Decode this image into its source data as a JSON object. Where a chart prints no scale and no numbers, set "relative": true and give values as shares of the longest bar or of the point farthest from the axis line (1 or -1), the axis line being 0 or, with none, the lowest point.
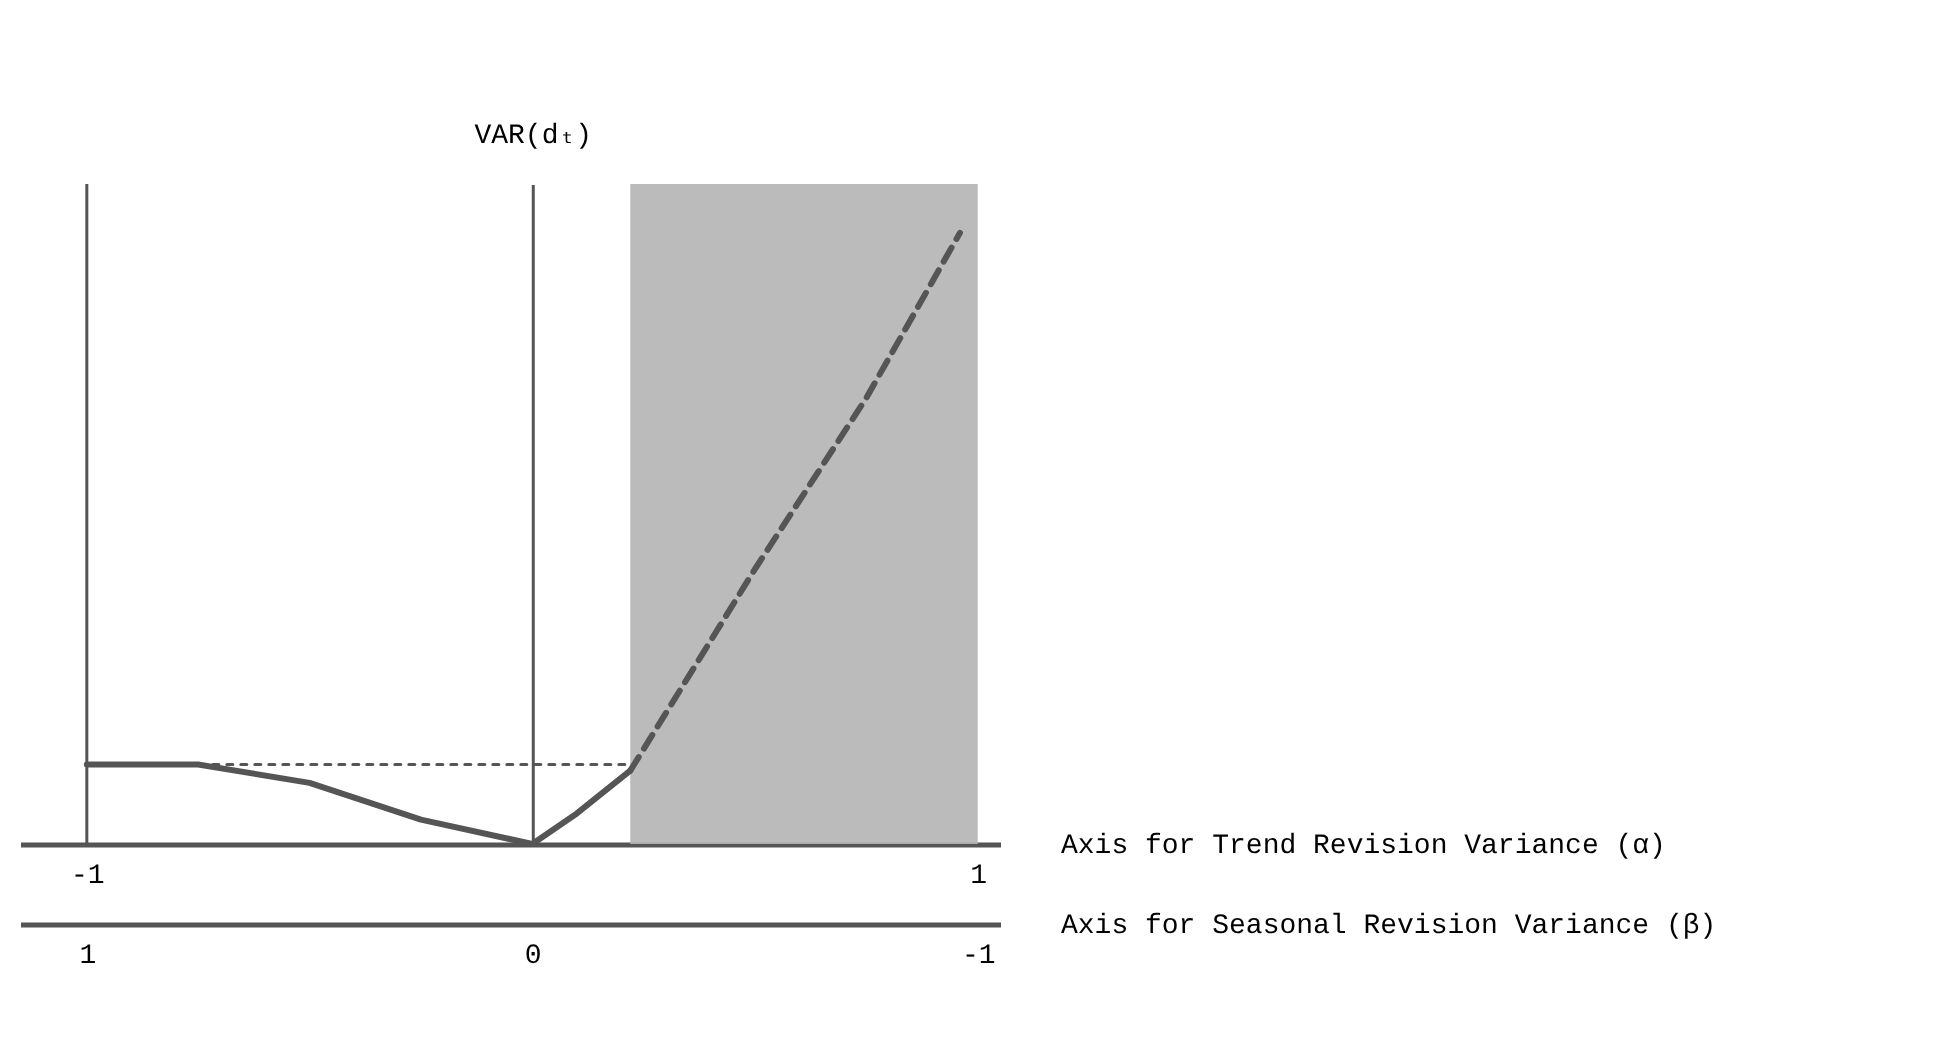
{
  "chart_data": {
    "type": "line",
    "relative": true,
    "ylabel": "VAR(dₜ)",
    "xlabel": "Axis for Trend Revision Variance (α)",
    "x2label": "Axis for Seasonal Revision Variance (β)",
    "xlim": [
      -1.15,
      1.05
    ],
    "xticks": [
      {
        "value": -1,
        "label": "-1"
      },
      {
        "value": 1,
        "label": "1"
      }
    ],
    "x2lim": [
      1.15,
      -1.05
    ],
    "x2ticks": [
      {
        "value": 1,
        "label": "1"
      },
      {
        "value": 0,
        "label": "0"
      },
      {
        "value": -1,
        "label": "-1"
      }
    ],
    "ref_lines": [
      {
        "axis": "x",
        "value": -1,
        "color": "#555555"
      }
    ],
    "bands": [
      {
        "axis": "x",
        "from": 0.22,
        "to": 1.0,
        "color": "#b4b4b4"
      }
    ],
    "series": [
      {
        "color": "#555555",
        "line_style": "solid",
        "x": [
          -1,
          -0.75,
          -0.5,
          -0.25,
          0,
          0.1,
          0.22
        ],
        "values": [
          0.13,
          0.13,
          0.1,
          0.04,
          0,
          0.05,
          0.12
        ]
      },
      {
        "color": "#555555",
        "line_style": "dashed",
        "x": [
          0.22,
          0.5,
          0.75,
          0.96
        ],
        "values": [
          0.12,
          0.45,
          0.73,
          1
        ]
      },
      {
        "color": "#555555",
        "line_style": "dotted",
        "x": [
          -1,
          0.22
        ],
        "values": [
          0.13,
          0.13
        ]
      }
    ]
  }
}
